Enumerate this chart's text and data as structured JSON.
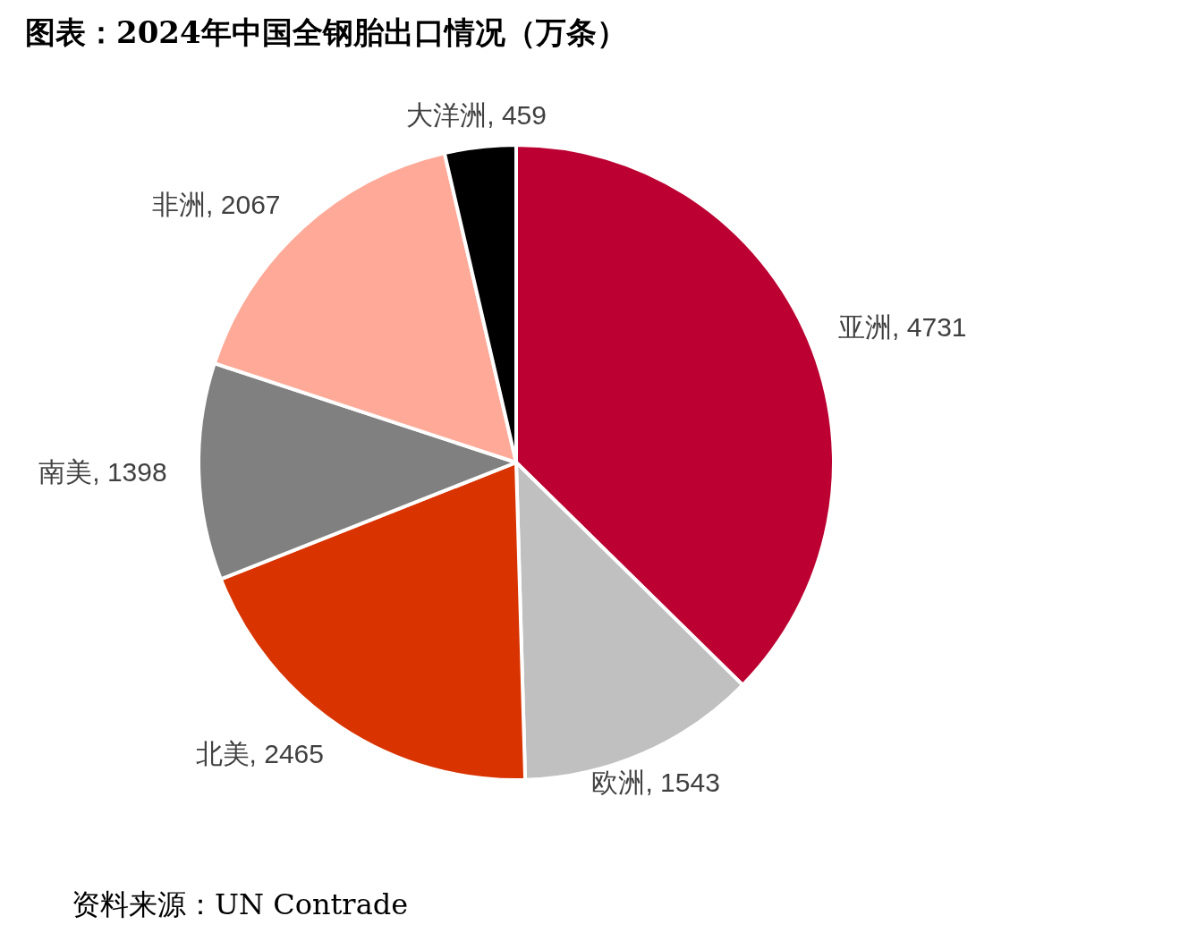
{
  "chart_data": {
    "type": "pie",
    "title": "图表：2024年中国全钢胎出口情况（万条）",
    "categories": [
      "亚洲",
      "欧洲",
      "北美",
      "南美",
      "非洲",
      "大洋洲"
    ],
    "values": [
      4731,
      1543,
      2465,
      1398,
      2067,
      459
    ],
    "value_labels": [
      ", 4731",
      ", 1543",
      ", 2465",
      ", 1398",
      ", 2067",
      ", 459"
    ],
    "colors": [
      "#bc0031",
      "#c0c0c0",
      "#d93300",
      "#808080",
      "#ffaa99",
      "#000000"
    ],
    "annotations": [
      "资料来源：UN Contrade"
    ]
  }
}
